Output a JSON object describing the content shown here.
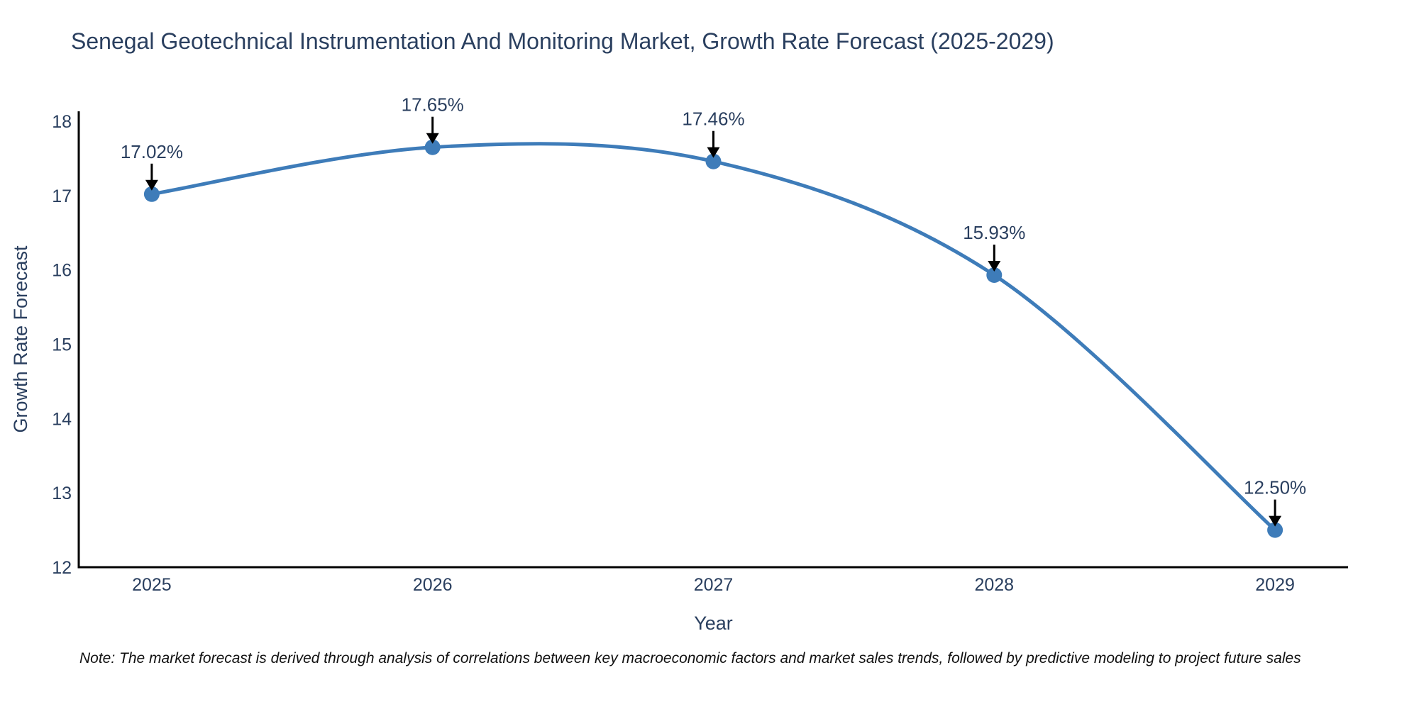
{
  "title": "Senegal Geotechnical Instrumentation And Monitoring Market, Growth Rate Forecast (2025-2029)",
  "note": "Note: The market forecast is derived through analysis of correlations between key macroeconomic factors and market sales trends, followed by predictive modeling to project future sales",
  "chart_data": {
    "type": "line",
    "line_shape": "spline",
    "title": "Senegal Geotechnical Instrumentation And Monitoring Market, Growth Rate Forecast (2025-2029)",
    "xlabel": "Year",
    "ylabel": "Growth Rate Forecast",
    "x": [
      2025,
      2026,
      2027,
      2028,
      2029
    ],
    "values": [
      17.02,
      17.65,
      17.46,
      15.93,
      12.5
    ],
    "point_labels": [
      "17.02%",
      "17.65%",
      "17.46%",
      "15.93%",
      "12.50%"
    ],
    "x_ticks": [
      "2025",
      "2026",
      "2027",
      "2028",
      "2029"
    ],
    "y_ticks": [
      12,
      13,
      14,
      15,
      16,
      17,
      18
    ],
    "xlim": [
      2024.74,
      2029.26
    ],
    "ylim": [
      12,
      18.134
    ],
    "grid": false,
    "legend": "none",
    "markers": true,
    "colors": {
      "line": "#3E7CB9",
      "marker": "#3E7CB9",
      "axis": "#000000",
      "text": "#2A3F5F",
      "annotation": "#2A3F5F",
      "arrow": "#000000",
      "note": "#111111",
      "background": "#FFFFFF"
    }
  }
}
